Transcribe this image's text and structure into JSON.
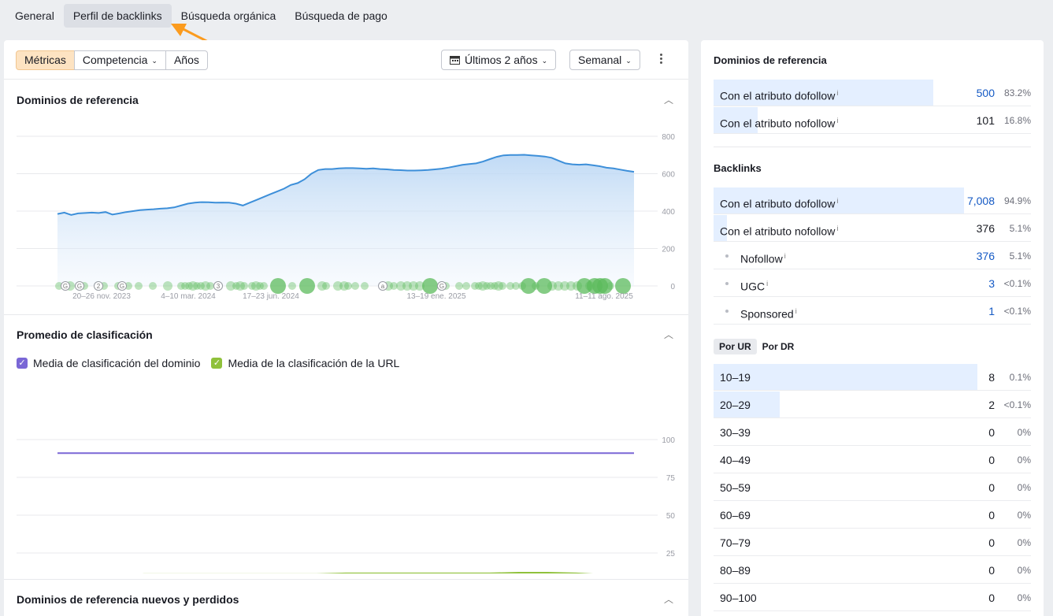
{
  "tabs": [
    "General",
    "Perfil de backlinks",
    "Búsqueda orgánica",
    "Búsqueda de pago"
  ],
  "toolbar": {
    "segments": [
      "Métricas",
      "Competencia",
      "Años"
    ],
    "period": "Últimos 2 años",
    "interval": "Semanal"
  },
  "section1": {
    "title": "Dominios de referencia"
  },
  "section2": {
    "title": "Promedio de clasificación",
    "legend_domain": "Media de clasificación del dominio",
    "legend_url": "Media de la clasificación de la URL"
  },
  "section3": {
    "title": "Dominios de referencia nuevos y perdidos"
  },
  "colors": {
    "accent_orange": "#fb9b1e",
    "line_blue": "#3d8fd9",
    "line_purple": "#7a67d6",
    "line_green": "#8fc13b",
    "event_green": "#5cbb5c"
  },
  "chart_data": [
    {
      "type": "area",
      "title": "Dominios de referencia",
      "yticks": [
        800,
        600,
        400,
        200,
        0
      ],
      "ylim": [
        0,
        800
      ],
      "xticks": [
        "20–26 nov. 2023",
        "4–10 mar. 2024",
        "17–23 jun. 2024",
        "13–19 ene. 2025",
        "11–11 ago. 2025"
      ],
      "series": [
        {
          "values": [
            385,
            392,
            380,
            388,
            390,
            392,
            390,
            395,
            382,
            388,
            395,
            400,
            405,
            408,
            410,
            413,
            415,
            420,
            430,
            440,
            445,
            448,
            447,
            445,
            446,
            445,
            440,
            430,
            445,
            460,
            475,
            490,
            505,
            520,
            540,
            550,
            570,
            600,
            620,
            625,
            625,
            628,
            630,
            630,
            628,
            626,
            628,
            625,
            623,
            620,
            619,
            617,
            617,
            618,
            620,
            623,
            627,
            633,
            640,
            647,
            652,
            655,
            665,
            678,
            690,
            698,
            700,
            700,
            701,
            698,
            695,
            692,
            685,
            670,
            655,
            650,
            648,
            650,
            645,
            640,
            632,
            628,
            622,
            615,
            610
          ]
        }
      ]
    },
    {
      "type": "line",
      "title": "Promedio de clasificación",
      "yticks": [
        100,
        75,
        50,
        25
      ],
      "ylim": [
        0,
        100
      ],
      "xticks": [
        "20–26 nov. 2023",
        "4–10 mar. 2024",
        "17–23 jun. 2024",
        "13–19 ene. 2025",
        "11–11 ago. 2025"
      ],
      "series": [
        {
          "name": "Media de clasificación del dominio",
          "values": [
            91,
            91,
            91,
            91,
            91,
            91,
            91,
            91,
            91,
            91,
            91,
            91,
            91,
            91,
            91,
            91,
            91,
            91,
            91,
            91,
            91
          ]
        },
        {
          "name": "Media de la clasificación de la URL",
          "values": [
            10,
            10,
            10,
            11,
            11,
            11,
            11,
            11,
            11,
            11,
            11.5,
            11.5,
            11.5,
            11.5,
            11.5,
            11.5,
            12,
            12,
            11.5,
            10.5,
            10
          ]
        }
      ]
    }
  ],
  "right": {
    "ref_title": "Dominios de referencia",
    "ref_rows": [
      {
        "label": "Con el atributo dofollow",
        "value": "500",
        "pct": "83.2%",
        "share": 83.2,
        "link": true
      },
      {
        "label": "Con el atributo nofollow",
        "value": "101",
        "pct": "16.8%",
        "share": 16.8,
        "link": false
      }
    ],
    "bl_title": "Backlinks",
    "bl_rows": [
      {
        "label": "Con el atributo dofollow",
        "value": "7,008",
        "pct": "94.9%",
        "share": 94.9,
        "link": true
      },
      {
        "label": "Con el atributo nofollow",
        "value": "376",
        "pct": "5.1%",
        "share": 5.1,
        "link": false
      }
    ],
    "bl_sub": [
      {
        "label": "Nofollow",
        "value": "376",
        "pct": "5.1%",
        "link": true
      },
      {
        "label": "UGC",
        "value": "3",
        "pct": "<0.1%",
        "link": true
      },
      {
        "label": "Sponsored",
        "value": "1",
        "pct": "<0.1%",
        "link": true
      }
    ],
    "info": "i",
    "tab_ur": "Por UR",
    "tab_dr": "Por DR",
    "ur_rows": [
      {
        "label": "10–19",
        "value": "8",
        "pct": "0.1%",
        "share": 100
      },
      {
        "label": "20–29",
        "value": "2",
        "pct": "<0.1%",
        "share": 25
      },
      {
        "label": "30–39",
        "value": "0",
        "pct": "0%",
        "share": 0
      },
      {
        "label": "40–49",
        "value": "0",
        "pct": "0%",
        "share": 0
      },
      {
        "label": "50–59",
        "value": "0",
        "pct": "0%",
        "share": 0
      },
      {
        "label": "60–69",
        "value": "0",
        "pct": "0%",
        "share": 0
      },
      {
        "label": "70–79",
        "value": "0",
        "pct": "0%",
        "share": 0
      },
      {
        "label": "80–89",
        "value": "0",
        "pct": "0%",
        "share": 0
      },
      {
        "label": "90–100",
        "value": "0",
        "pct": "0%",
        "share": 0
      }
    ]
  },
  "icons": {
    "calendar": "calendar-icon",
    "collapse": "chevron-up-icon",
    "kebab": "kebab-icon",
    "check": "✓"
  }
}
